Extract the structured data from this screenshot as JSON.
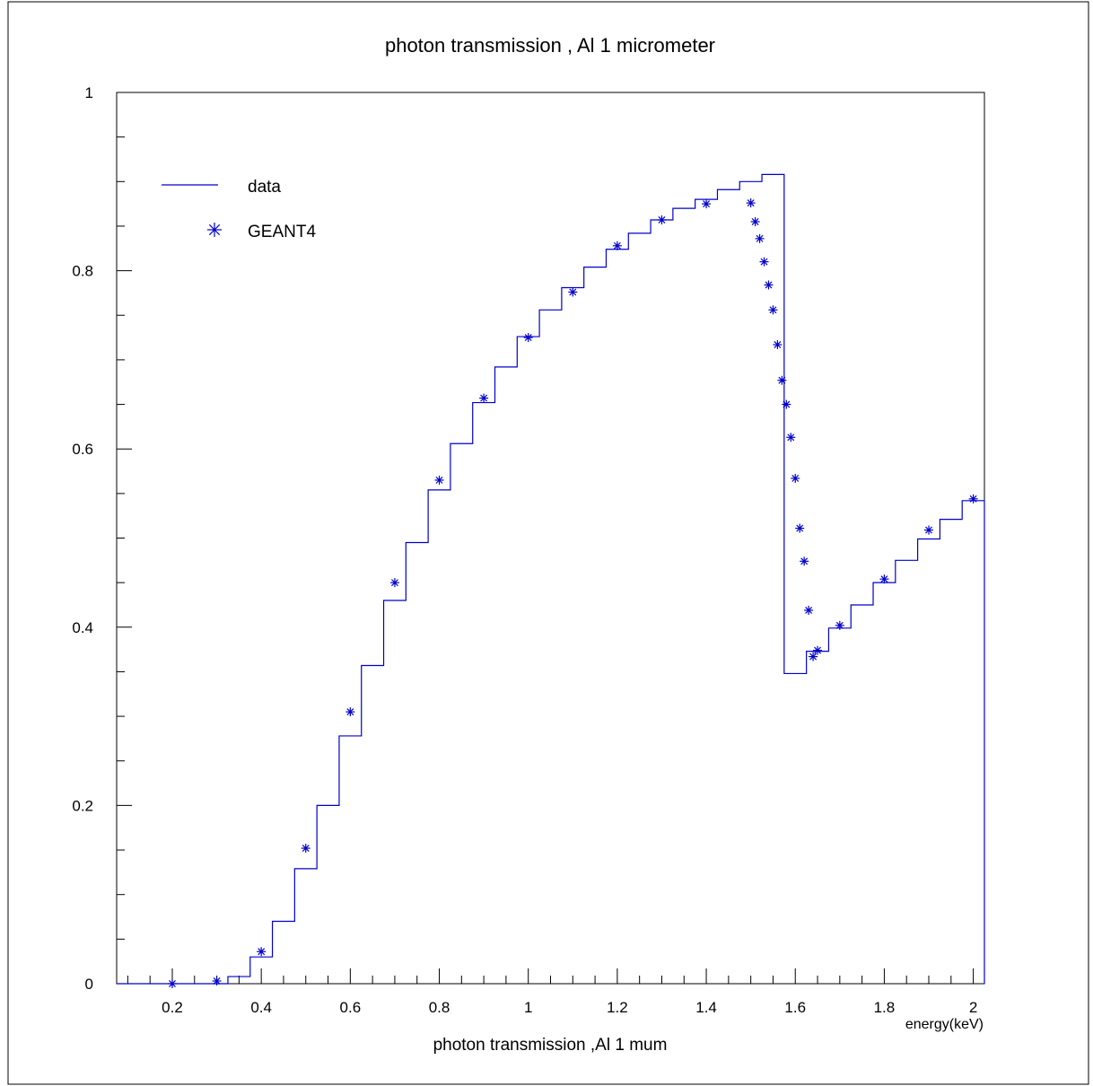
{
  "chart_data": {
    "type": "line",
    "title": "photon transmission , Al 1 micrometer",
    "xlabel": "photon transmission ,Al 1 mum",
    "x_unit_label": "energy(keV)",
    "ylabel": "",
    "xlim": [
      0.075,
      2.025
    ],
    "ylim": [
      0,
      1.0
    ],
    "x_tick_labels": [
      "0.2",
      "0.4",
      "0.6",
      "0.8",
      "1",
      "1.2",
      "1.4",
      "1.6",
      "1.8",
      "2"
    ],
    "x_ticks": [
      0.2,
      0.4,
      0.6,
      0.8,
      1.0,
      1.2,
      1.4,
      1.6,
      1.8,
      2.0
    ],
    "y_tick_labels": [
      "0",
      "0.2",
      "0.4",
      "0.6",
      "0.8",
      "1"
    ],
    "y_ticks": [
      0,
      0.2,
      0.4,
      0.6,
      0.8,
      1.0
    ],
    "grid": false,
    "legend_position": "top-left",
    "colors": {
      "series": "#0000cc",
      "axis": "#000000"
    },
    "series": [
      {
        "name": "data",
        "style": "step",
        "edges": [
          0.075,
          0.125,
          0.175,
          0.225,
          0.275,
          0.325,
          0.375,
          0.425,
          0.475,
          0.525,
          0.575,
          0.625,
          0.675,
          0.725,
          0.775,
          0.825,
          0.875,
          0.925,
          0.975,
          1.025,
          1.075,
          1.125,
          1.175,
          1.225,
          1.275,
          1.325,
          1.375,
          1.425,
          1.475,
          1.525,
          1.575,
          1.625,
          1.675,
          1.725,
          1.775,
          1.825,
          1.875,
          1.925,
          1.975,
          2.025
        ],
        "values": [
          0,
          0,
          0,
          0,
          0,
          0.008,
          0.03,
          0.07,
          0.129,
          0.2,
          0.278,
          0.357,
          0.43,
          0.495,
          0.554,
          0.606,
          0.652,
          0.692,
          0.726,
          0.756,
          0.781,
          0.804,
          0.824,
          0.842,
          0.857,
          0.87,
          0.88,
          0.891,
          0.9,
          0.908,
          0.348,
          0.373,
          0.399,
          0.425,
          0.45,
          0.475,
          0.499,
          0.521,
          0.542
        ]
      },
      {
        "name": "GEANT4",
        "style": "markers",
        "x": [
          0.2,
          0.3,
          0.4,
          0.5,
          0.6,
          0.7,
          0.8,
          0.9,
          1.0,
          1.1,
          1.2,
          1.3,
          1.4,
          1.5,
          1.51,
          1.52,
          1.53,
          1.54,
          1.55,
          1.56,
          1.57,
          1.58,
          1.59,
          1.6,
          1.61,
          1.62,
          1.63,
          1.64,
          1.65,
          1.7,
          1.8,
          1.9,
          2.0
        ],
        "y": [
          0.0,
          0.003,
          0.036,
          0.152,
          0.305,
          0.45,
          0.565,
          0.657,
          0.725,
          0.776,
          0.828,
          0.857,
          0.875,
          0.876,
          0.855,
          0.836,
          0.81,
          0.784,
          0.756,
          0.717,
          0.677,
          0.65,
          0.613,
          0.567,
          0.511,
          0.474,
          0.419,
          0.367,
          0.374,
          0.402,
          0.454,
          0.509,
          0.544
        ]
      }
    ]
  }
}
